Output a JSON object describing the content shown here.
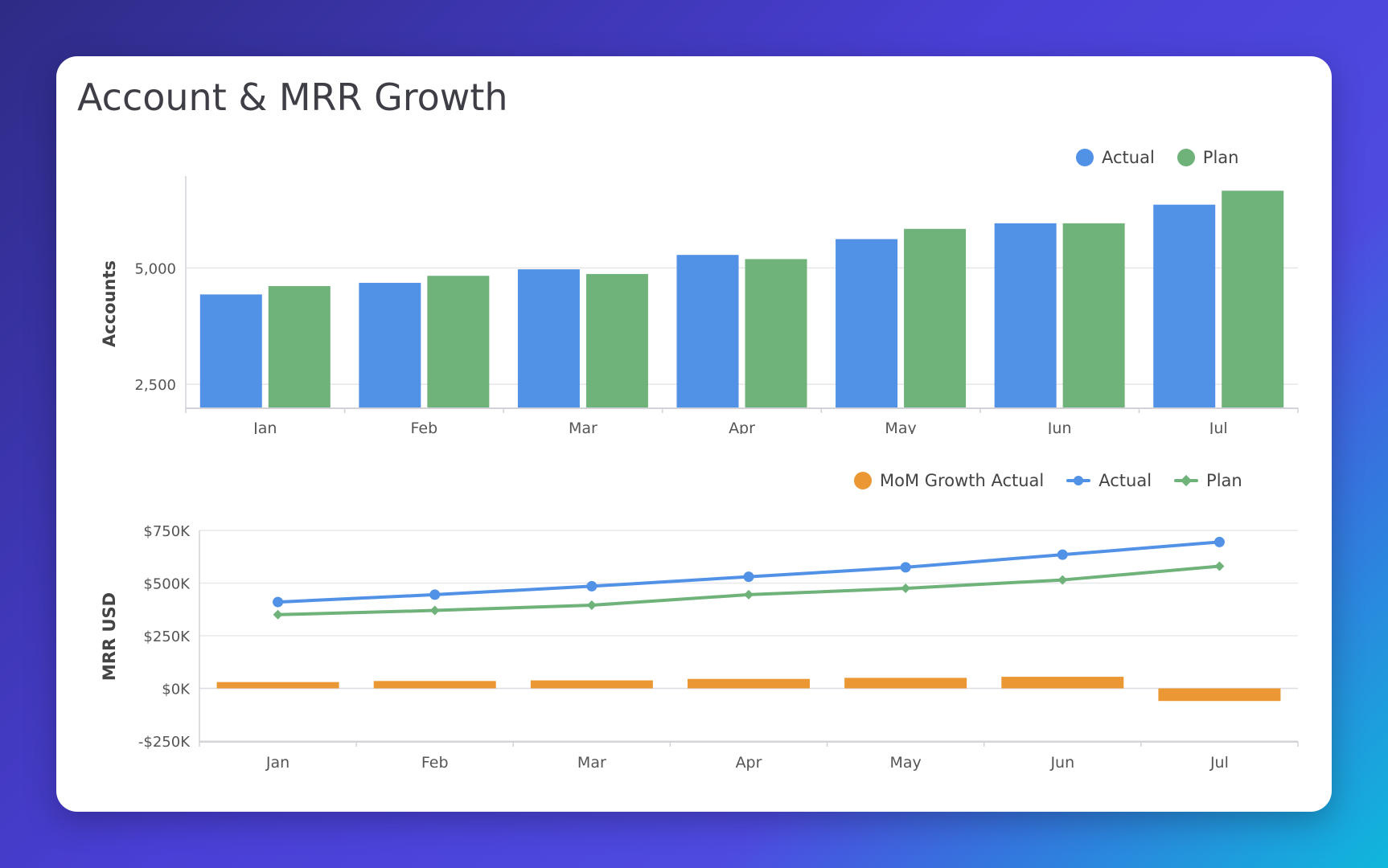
{
  "page": {
    "title": "Account & MRR Growth"
  },
  "colors": {
    "actual": "#5191e6",
    "plan": "#6fb27a",
    "mom": "#ea9734"
  },
  "chart_data": [
    {
      "type": "bar",
      "ylabel": "Accounts",
      "categories": [
        "Jan",
        "Feb",
        "Mar",
        "Apr",
        "May",
        "Jun",
        "Jul"
      ],
      "yticks": [
        2500,
        5000
      ],
      "ytick_labels": [
        "2,500",
        "5,000"
      ],
      "ylim": [
        2000,
        6700
      ],
      "series": [
        {
          "name": "Actual",
          "values": [
            4430,
            4680,
            4970,
            5280,
            5620,
            5960,
            6360
          ]
        },
        {
          "name": "Plan",
          "values": [
            4610,
            4830,
            4870,
            5190,
            5840,
            5960,
            6660
          ]
        }
      ],
      "legend": "top-right"
    },
    {
      "type": "line",
      "ylabel": "MRR USD",
      "categories": [
        "Jan",
        "Feb",
        "Mar",
        "Apr",
        "May",
        "Jun",
        "Jul"
      ],
      "yticks": [
        -250000,
        0,
        250000,
        500000,
        750000
      ],
      "ytick_labels": [
        "-$250K",
        "$0K",
        "$250K",
        "$500K",
        "$750K"
      ],
      "ylim": [
        -250000,
        750000
      ],
      "series": [
        {
          "name": "MoM Growth Actual",
          "kind": "bar",
          "values": [
            30000,
            35000,
            38000,
            45000,
            50000,
            55000,
            -60000
          ]
        },
        {
          "name": "Actual",
          "kind": "line",
          "values": [
            410000,
            445000,
            485000,
            530000,
            575000,
            635000,
            695000
          ]
        },
        {
          "name": "Plan",
          "kind": "line",
          "values": [
            350000,
            370000,
            395000,
            445000,
            475000,
            515000,
            580000
          ]
        }
      ],
      "legend": "top-right"
    }
  ]
}
